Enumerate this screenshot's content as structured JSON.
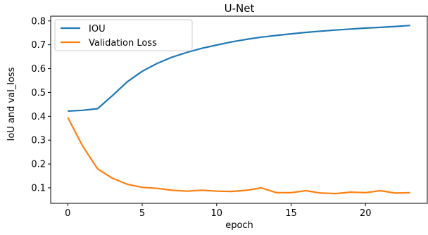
{
  "chart_data": {
    "type": "line",
    "title": "U-Net",
    "xlabel": "epoch",
    "ylabel": "IoU and val_loss",
    "xlim": [
      -1.15,
      24.15
    ],
    "ylim": [
      0.035,
      0.82
    ],
    "xticks": [
      0,
      5,
      10,
      15,
      20
    ],
    "yticks": [
      0.1,
      0.2,
      0.3,
      0.4,
      0.5,
      0.6,
      0.7,
      0.8
    ],
    "grid": false,
    "legend_position": "top-left",
    "x": [
      0,
      1,
      2,
      3,
      4,
      5,
      6,
      7,
      8,
      9,
      10,
      11,
      12,
      13,
      14,
      15,
      16,
      17,
      18,
      19,
      20,
      21,
      22,
      23
    ],
    "series": [
      {
        "name": "IOU",
        "color": "#1f77b4",
        "values": [
          0.422,
          0.425,
          0.432,
          0.487,
          0.545,
          0.589,
          0.622,
          0.648,
          0.668,
          0.685,
          0.699,
          0.712,
          0.723,
          0.732,
          0.739,
          0.746,
          0.752,
          0.757,
          0.762,
          0.766,
          0.77,
          0.773,
          0.777,
          0.781
        ]
      },
      {
        "name": "Validation Loss",
        "color": "#ff7f0e",
        "values": [
          0.395,
          0.275,
          0.18,
          0.14,
          0.115,
          0.102,
          0.098,
          0.09,
          0.086,
          0.09,
          0.086,
          0.085,
          0.09,
          0.1,
          0.08,
          0.08,
          0.088,
          0.078,
          0.076,
          0.082,
          0.08,
          0.088,
          0.078,
          0.08
        ]
      }
    ]
  }
}
